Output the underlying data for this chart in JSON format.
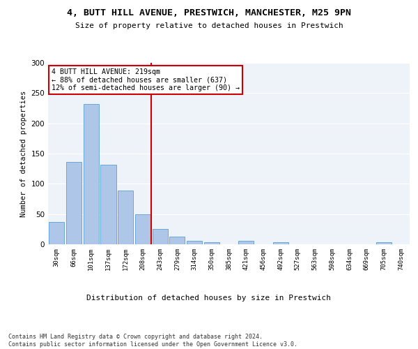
{
  "title1": "4, BUTT HILL AVENUE, PRESTWICH, MANCHESTER, M25 9PN",
  "title2": "Size of property relative to detached houses in Prestwich",
  "xlabel": "Distribution of detached houses by size in Prestwich",
  "ylabel": "Number of detached properties",
  "bar_labels": [
    "30sqm",
    "66sqm",
    "101sqm",
    "137sqm",
    "172sqm",
    "208sqm",
    "243sqm",
    "279sqm",
    "314sqm",
    "350sqm",
    "385sqm",
    "421sqm",
    "456sqm",
    "492sqm",
    "527sqm",
    "563sqm",
    "598sqm",
    "634sqm",
    "669sqm",
    "705sqm",
    "740sqm"
  ],
  "bar_values": [
    37,
    136,
    232,
    131,
    89,
    50,
    25,
    13,
    6,
    4,
    0,
    6,
    0,
    3,
    0,
    0,
    0,
    0,
    0,
    3,
    0
  ],
  "bar_color": "#aec6e8",
  "bar_edgecolor": "#5a9fd4",
  "vline_x": 5.5,
  "vline_color": "#cc0000",
  "annotation_text": "4 BUTT HILL AVENUE: 219sqm\n← 88% of detached houses are smaller (637)\n12% of semi-detached houses are larger (90) →",
  "annotation_box_color": "#cc0000",
  "footnote": "Contains HM Land Registry data © Crown copyright and database right 2024.\nContains public sector information licensed under the Open Government Licence v3.0.",
  "ylim": [
    0,
    300
  ],
  "yticks": [
    0,
    50,
    100,
    150,
    200,
    250,
    300
  ],
  "bg_color": "#eef2f9",
  "fig_bg": "#ffffff"
}
